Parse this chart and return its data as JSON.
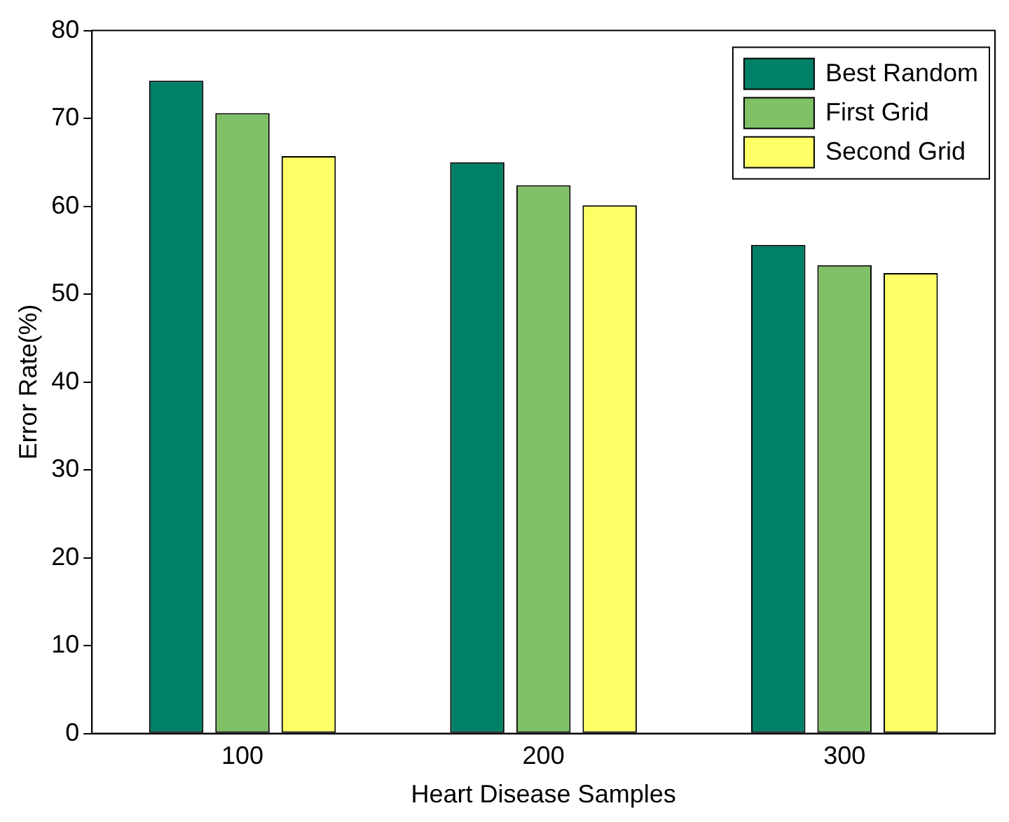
{
  "chart_data": {
    "type": "bar",
    "xlabel": "Heart Disease Samples",
    "ylabel": "Error Rate(%)",
    "categories": [
      "100",
      "200",
      "300"
    ],
    "series": [
      {
        "name": "Best Random",
        "color": "#008066",
        "values": [
          74.3,
          65.0,
          55.6
        ]
      },
      {
        "name": "First Grid",
        "color": "#80c066",
        "values": [
          70.6,
          62.4,
          53.3
        ]
      },
      {
        "name": "Second Grid",
        "color": "#ffff66",
        "values": [
          65.7,
          60.1,
          52.4
        ]
      }
    ],
    "ylim": [
      0,
      80
    ],
    "yticks": [
      0,
      10,
      20,
      30,
      40,
      50,
      60,
      70,
      80
    ],
    "grid": false,
    "legend": "top right"
  }
}
